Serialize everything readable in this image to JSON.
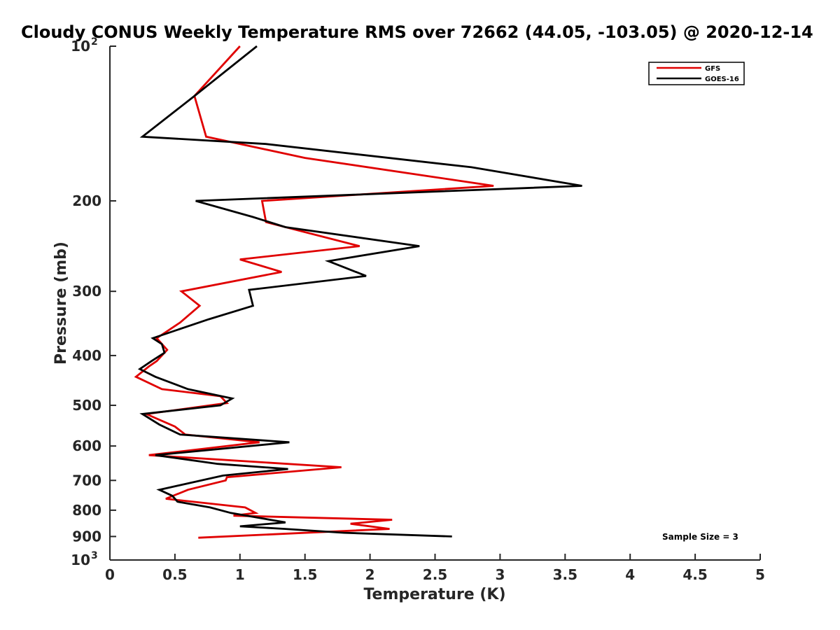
{
  "chart_data": {
    "type": "line",
    "title": "Cloudy CONUS Weekly Temperature RMS over 72662 (44.05, -103.05) @ 2020-12-14",
    "xlabel": "Temperature (K)",
    "ylabel": "Pressure (mb)",
    "xlim": [
      0,
      5
    ],
    "ylim": [
      100,
      1000
    ],
    "yscale": "log",
    "y_reversed": true,
    "x_ticks": [
      0,
      0.5,
      1,
      1.5,
      2,
      2.5,
      3,
      3.5,
      4,
      4.5,
      5
    ],
    "x_tick_labels": [
      "0",
      "0.5",
      "1",
      "1.5",
      "2",
      "2.5",
      "3",
      "3.5",
      "4",
      "4.5",
      "5"
    ],
    "y_ticks": [
      200,
      300,
      400,
      500,
      600,
      700,
      800,
      900
    ],
    "y_tick_labels": [
      "200",
      "300",
      "400",
      "500",
      "600",
      "700",
      "800",
      "900"
    ],
    "y_decade_labels": [
      {
        "value": 100,
        "base": "10",
        "exp": "2"
      },
      {
        "value": 1000,
        "base": "10",
        "exp": "3"
      }
    ],
    "grid": false,
    "legend_position": "top-right",
    "annotation": "Sample Size = 3",
    "series": [
      {
        "name": "GFS",
        "color": "#e00000",
        "points": [
          [
            1.0,
            100
          ],
          [
            0.65,
            125
          ],
          [
            0.74,
            150
          ],
          [
            1.5,
            165
          ],
          [
            2.95,
            187
          ],
          [
            1.17,
            200
          ],
          [
            1.2,
            220
          ],
          [
            1.92,
            245
          ],
          [
            1.0,
            260
          ],
          [
            1.32,
            275
          ],
          [
            0.55,
            300
          ],
          [
            0.69,
            320
          ],
          [
            0.54,
            345
          ],
          [
            0.36,
            370
          ],
          [
            0.44,
            390
          ],
          [
            0.36,
            410
          ],
          [
            0.3,
            420
          ],
          [
            0.2,
            440
          ],
          [
            0.4,
            465
          ],
          [
            0.85,
            480
          ],
          [
            0.9,
            495
          ],
          [
            0.28,
            520
          ],
          [
            0.5,
            550
          ],
          [
            0.58,
            570
          ],
          [
            1.15,
            590
          ],
          [
            0.3,
            625
          ],
          [
            1.78,
            660
          ],
          [
            0.9,
            690
          ],
          [
            0.89,
            700
          ],
          [
            0.6,
            730
          ],
          [
            0.43,
            760
          ],
          [
            1.04,
            790
          ],
          [
            1.12,
            810
          ],
          [
            0.95,
            820
          ],
          [
            2.17,
            835
          ],
          [
            1.85,
            850
          ],
          [
            2.15,
            870
          ],
          [
            0.68,
            905
          ]
        ]
      },
      {
        "name": "GOES-16",
        "color": "#000000",
        "points": [
          [
            1.13,
            100
          ],
          [
            0.65,
            125
          ],
          [
            0.25,
            150
          ],
          [
            1.2,
            155
          ],
          [
            2.78,
            172
          ],
          [
            3.63,
            187
          ],
          [
            0.66,
            200
          ],
          [
            1.1,
            215
          ],
          [
            1.35,
            225
          ],
          [
            2.38,
            245
          ],
          [
            1.68,
            262
          ],
          [
            1.97,
            280
          ],
          [
            1.07,
            298
          ],
          [
            1.1,
            320
          ],
          [
            0.76,
            340
          ],
          [
            0.33,
            370
          ],
          [
            0.4,
            380
          ],
          [
            0.42,
            395
          ],
          [
            0.32,
            410
          ],
          [
            0.23,
            425
          ],
          [
            0.35,
            440
          ],
          [
            0.6,
            465
          ],
          [
            0.94,
            485
          ],
          [
            0.85,
            500
          ],
          [
            0.25,
            520
          ],
          [
            0.38,
            545
          ],
          [
            0.54,
            570
          ],
          [
            1.38,
            590
          ],
          [
            0.35,
            625
          ],
          [
            0.83,
            650
          ],
          [
            1.37,
            665
          ],
          [
            0.87,
            685
          ],
          [
            0.38,
            730
          ],
          [
            0.48,
            750
          ],
          [
            0.52,
            770
          ],
          [
            0.77,
            790
          ],
          [
            0.93,
            810
          ],
          [
            1.35,
            845
          ],
          [
            1.0,
            860
          ],
          [
            1.35,
            870
          ],
          [
            1.8,
            885
          ],
          [
            2.63,
            900
          ]
        ]
      }
    ]
  }
}
